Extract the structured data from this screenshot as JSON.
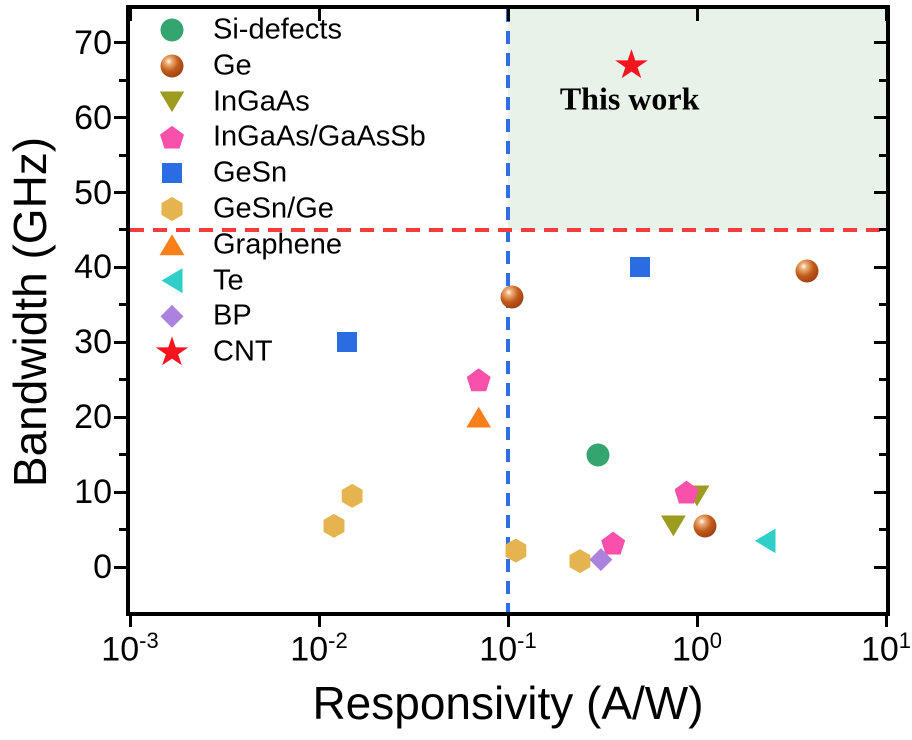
{
  "chart_data": {
    "type": "scatter",
    "title": "",
    "xlabel": "Responsivity (A/W)",
    "ylabel": "Bandwidth (GHz)",
    "x_scale": "log",
    "y_scale": "linear",
    "xlim": [
      0.001,
      10
    ],
    "ylim": [
      -6,
      74.5
    ],
    "grid": false,
    "legend_position": "top-left-inside",
    "x_ticks": [
      {
        "base": "10",
        "exp": "-3",
        "value": 0.001
      },
      {
        "base": "10",
        "exp": "-2",
        "value": 0.01
      },
      {
        "base": "10",
        "exp": "-1",
        "value": 0.1
      },
      {
        "base": "10",
        "exp": "0",
        "value": 1
      },
      {
        "base": "10",
        "exp": "1",
        "value": 10
      }
    ],
    "y_ticks": [
      {
        "value": 0,
        "label": "0"
      },
      {
        "value": 10,
        "label": "10"
      },
      {
        "value": 20,
        "label": "20"
      },
      {
        "value": 30,
        "label": "30"
      },
      {
        "value": 40,
        "label": "40"
      },
      {
        "value": 50,
        "label": "50"
      },
      {
        "value": 60,
        "label": "60"
      },
      {
        "value": 70,
        "label": "70"
      }
    ],
    "y_minor_ticks": [
      5,
      15,
      25,
      35,
      45,
      55,
      65
    ],
    "series": [
      {
        "name": "Si-defects",
        "marker": "circle",
        "color": "#35a56f",
        "points": [
          [
            0.3,
            15
          ]
        ]
      },
      {
        "name": "Ge",
        "marker": "sphere",
        "color": "#b04c18",
        "points": [
          [
            0.105,
            36
          ],
          [
            1.1,
            5.5
          ],
          [
            3.8,
            39.5
          ]
        ]
      },
      {
        "name": "InGaAs",
        "marker": "triangle-down",
        "color": "#9d9b20",
        "points": [
          [
            0.75,
            5.5
          ],
          [
            1.0,
            9.5
          ]
        ]
      },
      {
        "name": "InGaAs/GaAsSb",
        "marker": "pentagon",
        "color": "#f850ab",
        "points": [
          [
            0.07,
            25
          ],
          [
            0.36,
            3.2
          ],
          [
            0.88,
            10
          ]
        ]
      },
      {
        "name": "GeSn",
        "marker": "square",
        "color": "#2c6ce2",
        "points": [
          [
            0.014,
            30
          ],
          [
            0.5,
            40
          ]
        ]
      },
      {
        "name": "GeSn/Ge",
        "marker": "hexagon",
        "color": "#e6b44e",
        "points": [
          [
            0.012,
            5.5
          ],
          [
            0.015,
            9.5
          ],
          [
            0.11,
            2.2
          ],
          [
            0.24,
            0.8
          ]
        ]
      },
      {
        "name": "Graphene",
        "marker": "triangle-up",
        "color": "#f87f1a",
        "points": [
          [
            0.07,
            20
          ]
        ]
      },
      {
        "name": "Te",
        "marker": "triangle-left",
        "color": "#2dcfc8",
        "points": [
          [
            2.3,
            3.5
          ]
        ]
      },
      {
        "name": "BP",
        "marker": "diamond",
        "color": "#ab82de",
        "points": [
          [
            0.31,
            1.0
          ]
        ]
      },
      {
        "name": "CNT",
        "marker": "star",
        "color": "#f6141e",
        "points": [
          [
            0.45,
            67
          ]
        ]
      }
    ],
    "reference_lines": {
      "vline": {
        "x": 0.1,
        "color": "#2f6fe6",
        "style": "dashed"
      },
      "hline": {
        "y": 45,
        "color": "#f53c3c",
        "style": "dashed"
      }
    },
    "highlight_region": {
      "x_from": 0.1,
      "x_to": 10,
      "y_from": 45,
      "y_to": 74.5,
      "fill": "#e8f2e9"
    },
    "annotation": {
      "text": "This work",
      "x": 0.44,
      "y": 62.5,
      "series": "CNT"
    }
  }
}
